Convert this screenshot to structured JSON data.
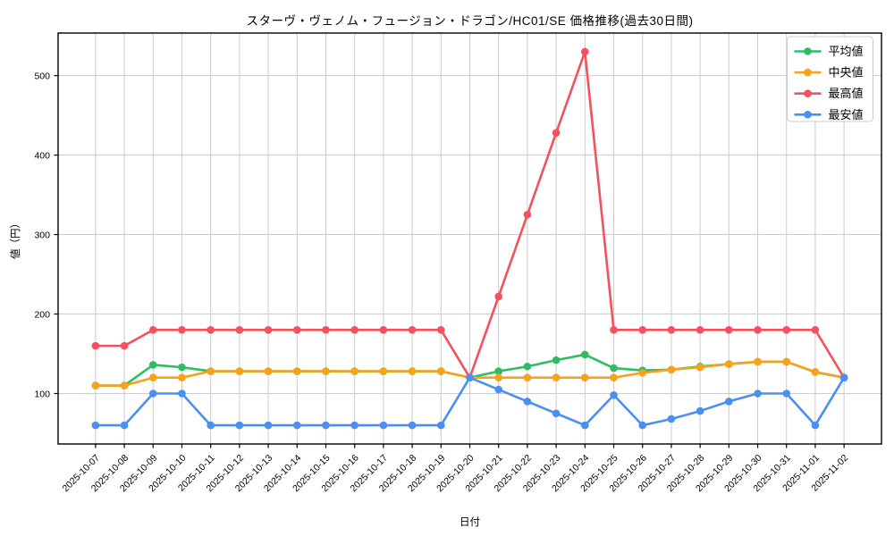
{
  "chart_data": {
    "type": "line",
    "title": "スターヴ・ヴェノム・フュージョン・ドラゴン/HC01/SE 価格推移(過去30日間)",
    "xlabel": "日付",
    "ylabel": "値（円）",
    "x": [
      "2025-10-07",
      "2025-10-08",
      "2025-10-09",
      "2025-10-10",
      "2025-10-11",
      "2025-10-12",
      "2025-10-13",
      "2025-10-14",
      "2025-10-15",
      "2025-10-16",
      "2025-10-17",
      "2025-10-18",
      "2025-10-19",
      "2025-10-20",
      "2025-10-21",
      "2025-10-22",
      "2025-10-23",
      "2025-10-24",
      "2025-10-25",
      "2025-10-26",
      "2025-10-27",
      "2025-10-28",
      "2025-10-29",
      "2025-10-30",
      "2025-10-31",
      "2025-11-01",
      "2025-11-02"
    ],
    "series": [
      {
        "key": "avg",
        "name": "平均値",
        "color": "#2ebd62",
        "values": [
          110,
          110,
          136,
          133,
          128,
          128,
          128,
          128,
          128,
          128,
          128,
          128,
          128,
          120,
          128,
          134,
          142,
          149,
          132,
          129,
          130,
          134,
          137,
          140,
          140,
          127,
          120
        ]
      },
      {
        "key": "median",
        "name": "中央値",
        "color": "#f9a11b",
        "values": [
          110,
          110,
          120,
          120,
          128,
          128,
          128,
          128,
          128,
          128,
          128,
          128,
          128,
          120,
          120,
          120,
          120,
          120,
          120,
          126,
          130,
          133,
          137,
          140,
          140,
          127,
          120
        ]
      },
      {
        "key": "max",
        "name": "最高値",
        "color": "#f4515c",
        "values": [
          160,
          160,
          180,
          180,
          180,
          180,
          180,
          180,
          180,
          180,
          180,
          180,
          180,
          120,
          222,
          325,
          428,
          530,
          180,
          180,
          180,
          180,
          180,
          180,
          180,
          180,
          120
        ]
      },
      {
        "key": "min",
        "name": "最安値",
        "color": "#4a90f2",
        "values": [
          60,
          60,
          100,
          100,
          60,
          60,
          60,
          60,
          60,
          60,
          60,
          60,
          60,
          120,
          105,
          90,
          75,
          60,
          98,
          60,
          68,
          78,
          90,
          100,
          100,
          60,
          120
        ]
      }
    ],
    "yticks": [
      100,
      200,
      300,
      400,
      500
    ],
    "ylim": [
      36.5,
      553.5
    ],
    "grid": true,
    "legend_position": "upper right",
    "legend_labels": [
      "平均値",
      "中央値",
      "最高値",
      "最安値"
    ],
    "grid_color": "#cccccc"
  }
}
